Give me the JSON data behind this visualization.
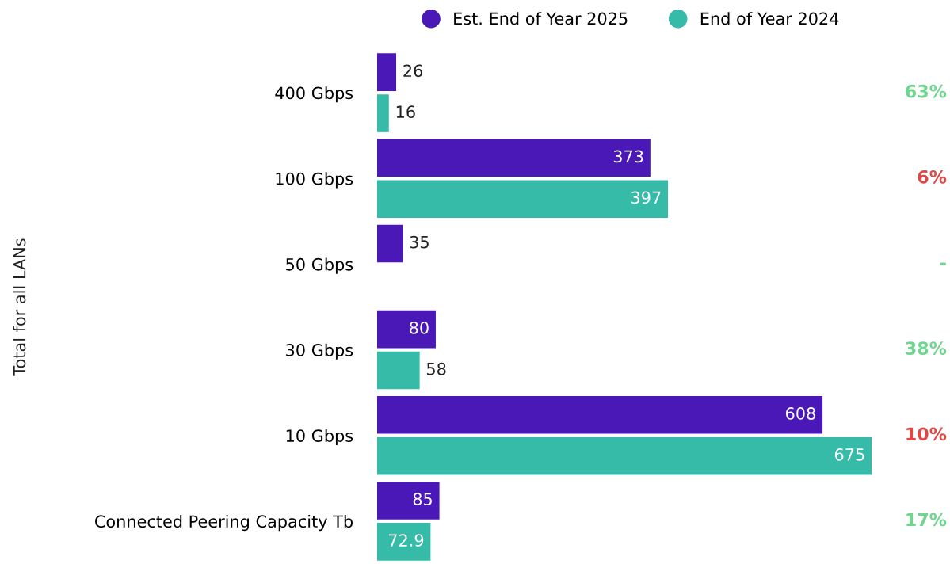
{
  "chart_data": {
    "type": "bar",
    "orientation": "horizontal",
    "ylabel": "Total for all LANs",
    "categories": [
      "400 Gbps",
      "100 Gbps",
      "50 Gbps",
      "30 Gbps",
      "10 Gbps",
      "Connected Peering Capacity Tb"
    ],
    "series": [
      {
        "name": "Est. End of Year 2025",
        "color": "#4a18b6",
        "values": [
          26,
          373,
          35,
          80,
          608,
          85
        ]
      },
      {
        "name": "End of Year 2024",
        "color": "#37bba9",
        "values": [
          16,
          397,
          null,
          58,
          675,
          72.9
        ]
      }
    ],
    "tick_labels": "y",
    "data_labels": true,
    "legend": "top",
    "annotations": [
      "63%",
      "6%",
      "-",
      "38%",
      "10%",
      "17%"
    ]
  }
}
